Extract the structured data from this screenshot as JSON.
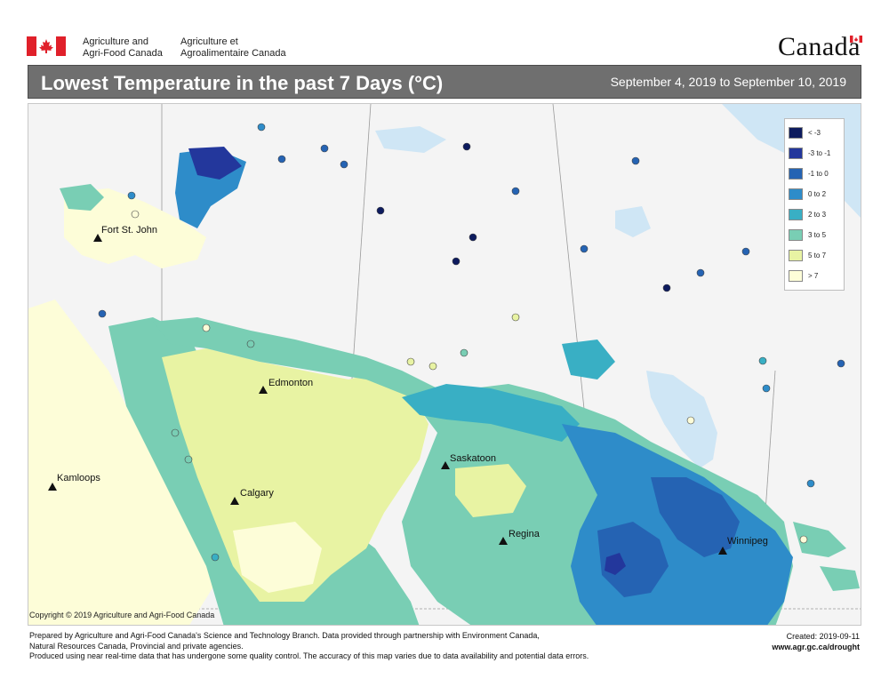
{
  "header": {
    "agency_en_line1": "Agriculture and",
    "agency_en_line2": "Agri-Food Canada",
    "agency_fr_line1": "Agriculture et",
    "agency_fr_line2": "Agroalimentaire Canada",
    "wordmark": "Canada",
    "flag_color": "#e0202a"
  },
  "titlebar": {
    "title": "Lowest Temperature in the past 7 Days (°C)",
    "date_range": "September 4, 2019 to September 10, 2019",
    "background": "#6f6f6f"
  },
  "legend": {
    "items": [
      {
        "label": "< -3",
        "color": "#0d1b5e"
      },
      {
        "label": "-3 to -1",
        "color": "#23379c"
      },
      {
        "label": "-1 to 0",
        "color": "#2563b3"
      },
      {
        "label": "0 to 2",
        "color": "#2e8cc9"
      },
      {
        "label": "2 to 3",
        "color": "#39afc4"
      },
      {
        "label": "3 to 5",
        "color": "#79ceb4"
      },
      {
        "label": "5 to 7",
        "color": "#e8f3a3"
      },
      {
        "label": "> 7",
        "color": "#fdfdd8"
      }
    ]
  },
  "cities": [
    {
      "name": "Fort St. John"
    },
    {
      "name": "Edmonton"
    },
    {
      "name": "Saskatoon"
    },
    {
      "name": "Kamloops"
    },
    {
      "name": "Calgary"
    },
    {
      "name": "Regina"
    },
    {
      "name": "Winnipeg"
    }
  ],
  "copyright": "Copyright © 2019 Agriculture and Agri-Food Canada",
  "footer": {
    "line1": "Prepared by Agriculture and Agri-Food Canada's Science and Technology Branch. Data provided through partnership with Environment Canada,",
    "line2": "Natural Resources Canada, Provincial and private agencies.",
    "line3": "Produced using near real-time data that has undergone some quality control. The accuracy of this map varies due to data availability and potential data errors.",
    "created": "Created: 2019-09-11",
    "url": "www.agr.gc.ca/drought"
  }
}
